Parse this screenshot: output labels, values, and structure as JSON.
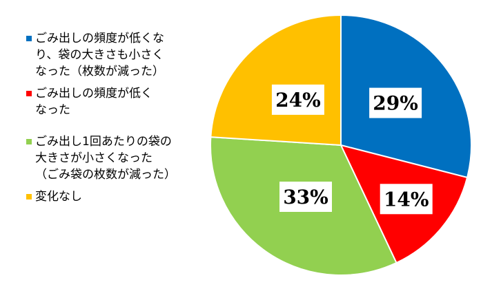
{
  "chart_data": {
    "type": "pie",
    "categories": [
      "ごみ出しの頻度が低くなり、袋の大きさも小さくなった（枚数が減った）",
      "ごみ出しの頻度が低くなった",
      "ごみ出し1回あたりの袋の大きさが小さくなった（ごみ袋の枚数が減った）",
      "変化なし"
    ],
    "values": [
      29,
      14,
      33,
      24
    ],
    "labels": [
      "29%",
      "14%",
      "33%",
      "24%"
    ],
    "colors": [
      "#0070C0",
      "#FF0000",
      "#92D050",
      "#FFC000"
    ],
    "legend_position": "left"
  },
  "legend": {
    "items": [
      {
        "label": "ごみ出しの頻度が低くな\nり、袋の大きさも小さく\nなった（枚数が減った）",
        "color": "#0070C0"
      },
      {
        "label": "ごみ出しの頻度が低く\nなった",
        "color": "#FF0000"
      },
      {
        "label": "ごみ出し1回あたりの袋の\n大きさが小さくなった\n（ごみ袋の枚数が減った）",
        "color": "#92D050"
      },
      {
        "label": "変化なし",
        "color": "#FFC000"
      }
    ]
  }
}
